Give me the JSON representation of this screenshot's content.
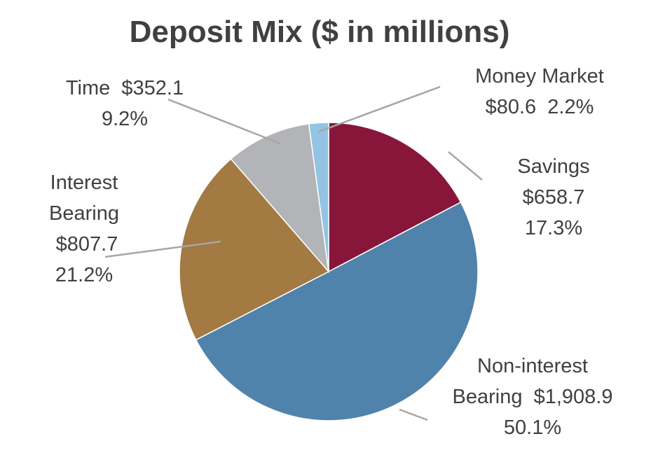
{
  "chart_data": {
    "type": "pie",
    "title": "Deposit Mix ($ in millions)",
    "slices": [
      {
        "name": "Savings",
        "value": 658.7,
        "percent": "17.3%",
        "value_label": "$658.7",
        "color": "#87163a",
        "label_lines": [
          "Savings",
          "$658.7",
          "17.3%"
        ]
      },
      {
        "name": "Non-interest Bearing",
        "value": 1908.9,
        "percent": "50.1%",
        "value_label": "$1,908.9",
        "color": "#5083ab",
        "label_lines": [
          "Non-interest",
          "Bearing  $1,908.9",
          "50.1%"
        ]
      },
      {
        "name": "Interest Bearing",
        "value": 807.7,
        "percent": "21.2%",
        "value_label": "$807.7",
        "color": "#a27a42",
        "label_lines": [
          "Interest",
          "Bearing",
          " $807.7",
          "21.2%"
        ]
      },
      {
        "name": "Time",
        "value": 352.1,
        "percent": "9.2%",
        "value_label": "$352.1",
        "color": "#b3b4b8",
        "label_lines": [
          "Time  $352.1",
          "9.2%"
        ]
      },
      {
        "name": "Money Market",
        "value": 80.6,
        "percent": "2.2%",
        "value_label": "$80.6",
        "color": "#93c4e3",
        "label_lines": [
          "Money Market",
          "$80.6  2.2%"
        ]
      }
    ],
    "legend": "none",
    "start": "top",
    "direction": "clockwise"
  }
}
